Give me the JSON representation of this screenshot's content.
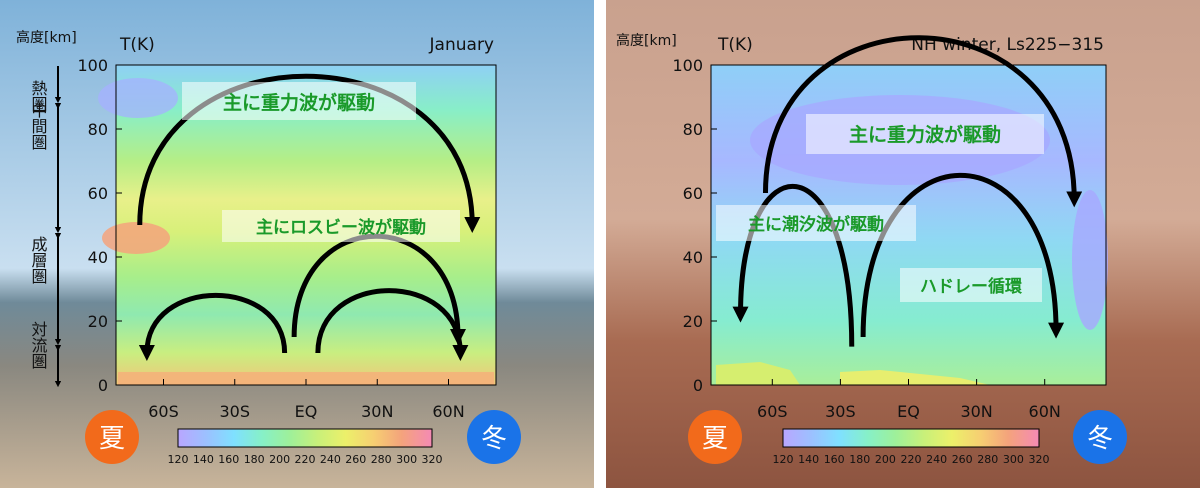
{
  "colors": {
    "summer_badge": "#f26a1b",
    "winter_badge": "#1a73e8",
    "arrow": "#000000",
    "label_text": "#1a9a2a",
    "colorbar_stops": [
      "#b9a6ff",
      "#9cc0ff",
      "#7fe0ff",
      "#86f0c8",
      "#9ef09a",
      "#c8f07a",
      "#ecf06a",
      "#f6cf72",
      "#f4a37c",
      "#f48ab4"
    ]
  },
  "earth_panel": {
    "altitude_label": "高度[km]",
    "temp_label": "T(K)",
    "period_label": "January",
    "layers": [
      {
        "name": "熱圏"
      },
      {
        "name": "中間圏"
      },
      {
        "name": "成層圏"
      },
      {
        "name": "対流圏"
      }
    ],
    "drivers": {
      "gravity_wave": "主に重力波が駆動",
      "rossby_wave": "主にロスビー波が駆動"
    },
    "summer_label": "夏",
    "winter_label": "冬"
  },
  "mars_panel": {
    "altitude_label": "高度[km]",
    "temp_label": "T(K)",
    "period_label": "NH winter, Ls225−315",
    "drivers": {
      "gravity_wave": "主に重力波が駆動",
      "tidal_wave": "主に潮汐波が駆動",
      "hadley": "ハドレー循環"
    },
    "summer_label": "夏",
    "winter_label": "冬"
  },
  "chart_data": [
    {
      "type": "heatmap",
      "title": "January",
      "xlabel": "",
      "ylabel": "高度[km]",
      "colorbar_label": "T(K)",
      "x_ticks": [
        "60S",
        "30S",
        "EQ",
        "30N",
        "60N"
      ],
      "y_ticks": [
        0,
        20,
        40,
        60,
        80,
        100
      ],
      "ylim": [
        0,
        100
      ],
      "colorbar_ticks": [
        120,
        140,
        160,
        180,
        200,
        220,
        240,
        260,
        280,
        300,
        320
      ],
      "colorbar_range": [
        120,
        320
      ],
      "circulation": [
        {
          "label": "主に重力波が駆動",
          "from_lat": -70,
          "to_lat": 70,
          "from_alt": 50,
          "to_alt": 50,
          "peak_alt": 81
        },
        {
          "label": "主にロスビー波が駆動",
          "from_lat": -9,
          "to_lat": -67,
          "from_alt": 10,
          "to_alt": 10,
          "peak_alt": 22
        },
        {
          "label": "主にロスビー波が駆動",
          "from_lat": -5,
          "to_lat": 64,
          "from_alt": 15,
          "to_alt": 15,
          "peak_alt": 36
        },
        {
          "label": "主にロスビー波が駆動",
          "from_lat": 5,
          "to_lat": 65,
          "from_alt": 10,
          "to_alt": 10,
          "peak_alt": 23
        }
      ]
    },
    {
      "type": "heatmap",
      "title": "NH winter, Ls225−315",
      "xlabel": "",
      "ylabel": "高度[km]",
      "colorbar_label": "T(K)",
      "x_ticks": [
        "60S",
        "30S",
        "EQ",
        "30N",
        "60N"
      ],
      "y_ticks": [
        0,
        20,
        40,
        60,
        80,
        100
      ],
      "ylim": [
        0,
        100
      ],
      "colorbar_ticks": [
        120,
        140,
        160,
        180,
        200,
        220,
        240,
        260,
        280,
        300,
        320
      ],
      "colorbar_range": [
        120,
        320
      ],
      "circulation": [
        {
          "label": "主に重力波が駆動",
          "from_lat": -63,
          "to_lat": 73,
          "from_alt": 60,
          "to_alt": 58,
          "peak_alt": 92
        },
        {
          "label": "主に潮汐波が駆動",
          "from_lat": -25,
          "to_lat": -74,
          "from_alt": 12,
          "to_alt": 22,
          "peak_alt": 47
        },
        {
          "label": "ハドレー循環",
          "from_lat": -20,
          "to_lat": 65,
          "from_alt": 15,
          "to_alt": 17,
          "peak_alt": 49
        }
      ]
    }
  ]
}
